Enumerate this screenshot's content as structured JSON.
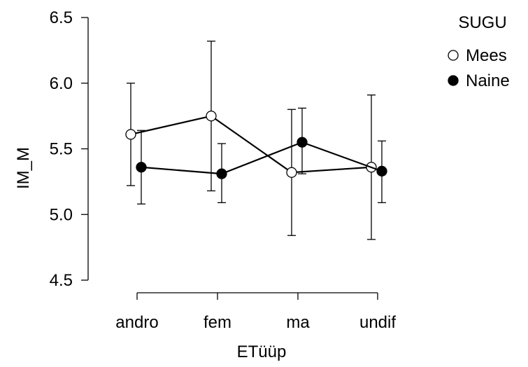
{
  "chart_data": {
    "type": "line",
    "title": "",
    "xlabel": "ETüüp",
    "ylabel": "IM_M",
    "categories": [
      "andro",
      "fem",
      "ma",
      "undif"
    ],
    "ylim": [
      4.5,
      6.5
    ],
    "yticks": [
      "4.5",
      "5.0",
      "5.5",
      "6.0",
      "6.5"
    ],
    "legend": {
      "title": "SUGU",
      "placement": "top-right"
    },
    "series": [
      {
        "name": "Mees",
        "marker": "open-circle",
        "color": "#000000",
        "values": [
          5.61,
          5.75,
          5.32,
          5.36
        ],
        "error_low": [
          5.22,
          5.18,
          4.84,
          4.81
        ],
        "error_high": [
          6.0,
          6.32,
          5.8,
          5.91
        ]
      },
      {
        "name": "Naine",
        "marker": "filled-circle",
        "color": "#000000",
        "values": [
          5.36,
          5.31,
          5.55,
          5.33
        ],
        "error_low": [
          5.08,
          5.09,
          5.31,
          5.09
        ],
        "error_high": [
          5.64,
          5.54,
          5.81,
          5.56
        ]
      }
    ]
  }
}
